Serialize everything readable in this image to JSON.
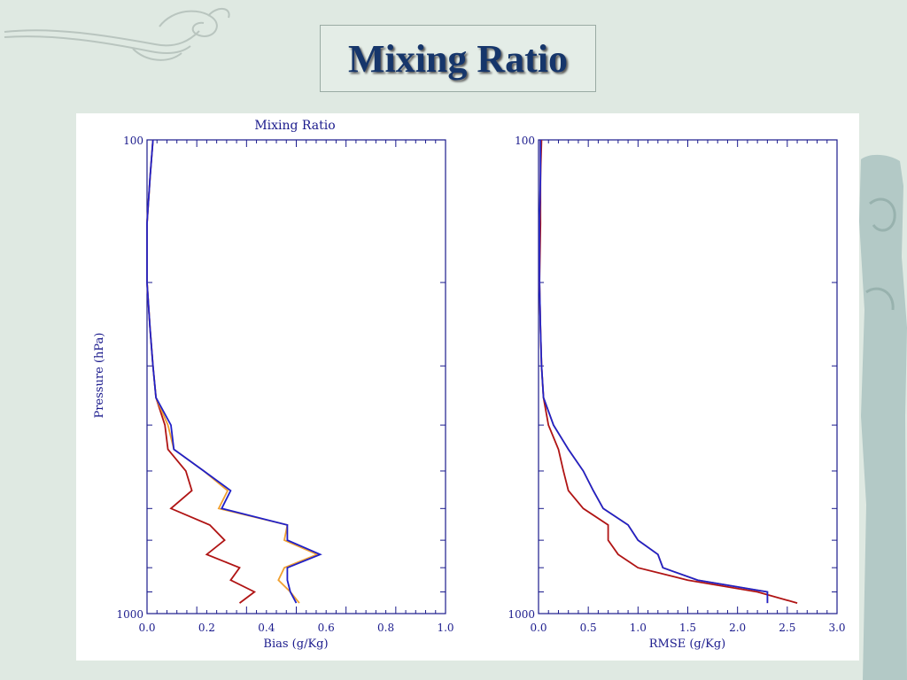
{
  "slide": {
    "title": "Mixing Ratio"
  },
  "colors": {
    "accent": "#16366b",
    "axis": "#1a1a8c",
    "background": "#dfe9e2"
  },
  "chart_data": [
    {
      "type": "line",
      "title": "Mixing Ratio",
      "xlabel": "Bias (g/Kg)",
      "ylabel": "Pressure (hPa)",
      "xlim": [
        0.0,
        1.0
      ],
      "ylim": [
        1000,
        100
      ],
      "y_scale": "log",
      "x_ticks": [
        "0.0",
        "0.2",
        "0.4",
        "0.6",
        "0.8",
        "1.0"
      ],
      "y_tick_labels": [
        "100",
        "1000"
      ],
      "grid": false,
      "series": [
        {
          "color": "#b01414",
          "x": [
            0.02,
            0.01,
            0.0,
            0.0,
            0.01,
            0.02,
            0.03,
            0.06,
            0.07,
            0.13,
            0.15,
            0.08,
            0.21,
            0.26,
            0.2,
            0.31,
            0.28,
            0.36,
            0.31
          ],
          "y": [
            100,
            120,
            150,
            200,
            250,
            300,
            350,
            400,
            450,
            500,
            550,
            600,
            650,
            700,
            750,
            800,
            850,
            900,
            950
          ]
        },
        {
          "color": "#f0a030",
          "x": [
            0.02,
            0.01,
            0.0,
            0.0,
            0.01,
            0.02,
            0.03,
            0.07,
            0.09,
            0.19,
            0.27,
            0.24,
            0.47,
            0.46,
            0.57,
            0.46,
            0.44,
            0.48,
            0.51
          ],
          "y": [
            100,
            120,
            150,
            200,
            250,
            300,
            350,
            400,
            450,
            500,
            550,
            600,
            650,
            700,
            750,
            800,
            850,
            900,
            950
          ]
        },
        {
          "color": "#2020c8",
          "x": [
            0.02,
            0.01,
            0.0,
            0.0,
            0.01,
            0.02,
            0.03,
            0.08,
            0.09,
            0.19,
            0.28,
            0.25,
            0.47,
            0.47,
            0.58,
            0.47,
            0.47,
            0.48,
            0.5
          ],
          "y": [
            100,
            120,
            150,
            200,
            250,
            300,
            350,
            400,
            450,
            500,
            550,
            600,
            650,
            700,
            750,
            800,
            850,
            900,
            950
          ]
        }
      ]
    },
    {
      "type": "line",
      "title": "",
      "xlabel": "RMSE (g/Kg)",
      "ylabel": "",
      "xlim": [
        0.0,
        3.0
      ],
      "ylim": [
        1000,
        100
      ],
      "y_scale": "log",
      "x_ticks": [
        "0.0",
        "0.5",
        "1.0",
        "1.5",
        "2.0",
        "2.5",
        "3.0"
      ],
      "y_tick_labels": [
        "100",
        "1000"
      ],
      "grid": false,
      "series": [
        {
          "color": "#b01414",
          "x": [
            0.03,
            0.02,
            0.02,
            0.01,
            0.02,
            0.03,
            0.05,
            0.1,
            0.2,
            0.25,
            0.3,
            0.45,
            0.7,
            0.7,
            0.8,
            1.0,
            1.5,
            2.2,
            2.6
          ],
          "y": [
            100,
            120,
            150,
            200,
            250,
            300,
            350,
            400,
            450,
            500,
            550,
            600,
            650,
            700,
            750,
            800,
            850,
            900,
            950
          ]
        },
        {
          "color": "#f0a030",
          "x": [
            0.02,
            0.02,
            0.01,
            0.01,
            0.02,
            0.03,
            0.05,
            0.15,
            0.3,
            0.45,
            0.55,
            0.65,
            0.9,
            1.0,
            1.2,
            1.25,
            1.6,
            2.3,
            2.3
          ],
          "y": [
            100,
            120,
            150,
            200,
            250,
            300,
            350,
            400,
            450,
            500,
            550,
            600,
            650,
            700,
            750,
            800,
            850,
            900,
            950
          ]
        },
        {
          "color": "#2020c8",
          "x": [
            0.02,
            0.02,
            0.01,
            0.01,
            0.02,
            0.03,
            0.05,
            0.15,
            0.3,
            0.45,
            0.55,
            0.65,
            0.9,
            1.0,
            1.2,
            1.25,
            1.6,
            2.3,
            2.3
          ],
          "y": [
            100,
            120,
            150,
            200,
            250,
            300,
            350,
            400,
            450,
            500,
            550,
            600,
            650,
            700,
            750,
            800,
            850,
            900,
            950
          ]
        }
      ]
    }
  ]
}
